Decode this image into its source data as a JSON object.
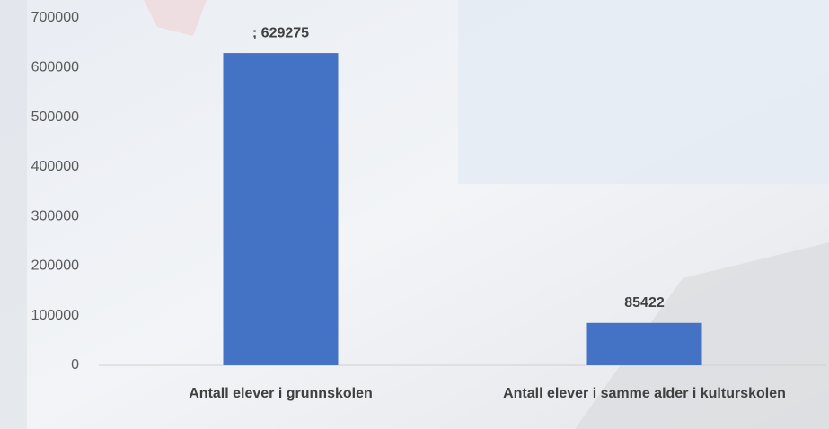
{
  "chart_data": {
    "type": "bar",
    "categories": [
      "Antall elever i grunnskolen",
      "Antall elever i samme alder i kulturskolen"
    ],
    "values": [
      629275,
      85422
    ],
    "value_labels": [
      "; 629275",
      "85422"
    ],
    "color": "#4472c4",
    "ylim": [
      0,
      700000
    ],
    "yticks": [
      0,
      100000,
      200000,
      300000,
      400000,
      500000,
      600000,
      700000
    ],
    "grid": false
  }
}
